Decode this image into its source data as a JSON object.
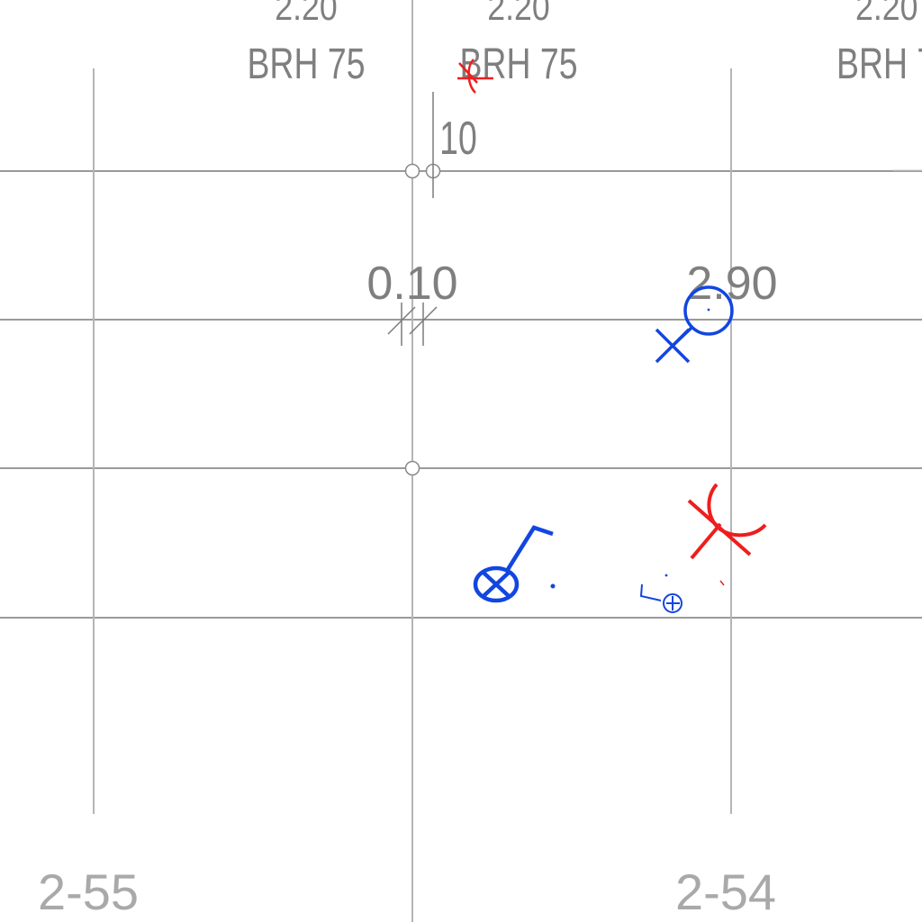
{
  "page": {
    "background": "#ffffff"
  },
  "colors": {
    "grid": "#9a9a9a",
    "text": "#7f7f7f",
    "blue_symbols": "#1246e0",
    "red_symbols": "#ef1d1d"
  },
  "window_labels": [
    {
      "height": "2.20",
      "type": "BRH 75"
    },
    {
      "height": "2.20",
      "type": "BRH 75"
    },
    {
      "height": "2.20",
      "type": "BRH 7"
    }
  ],
  "dimensions": {
    "vertical": "10",
    "offset": "0.10",
    "height": "2.90"
  },
  "room_labels": {
    "left": "2-55",
    "right": "2-54"
  },
  "symbols": [
    {
      "name": "ceiling-light-fixture-icon",
      "color": "blue"
    },
    {
      "name": "switch-icon",
      "color": "blue"
    },
    {
      "name": "socket-icon",
      "color": "blue"
    },
    {
      "name": "double-socket-icon",
      "color": "blue"
    },
    {
      "name": "network-outlet-icon",
      "color": "red"
    },
    {
      "name": "network-outlet-small-icon",
      "color": "red"
    }
  ]
}
